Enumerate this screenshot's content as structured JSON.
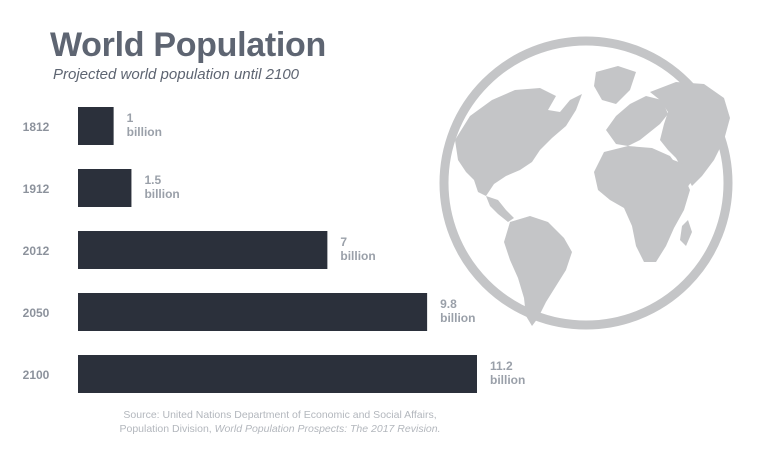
{
  "title": "World Population",
  "subtitle": "Projected world population until 2100",
  "chart_data": {
    "type": "bar",
    "orientation": "horizontal",
    "categories": [
      "1812",
      "1912",
      "2012",
      "2050",
      "2100"
    ],
    "values": [
      1,
      1.5,
      7,
      9.8,
      11.2
    ],
    "value_labels": [
      [
        "1",
        "billion"
      ],
      [
        "1.5",
        "billion"
      ],
      [
        "7",
        "billion"
      ],
      [
        "9.8",
        "billion"
      ],
      [
        "11.2",
        "billion"
      ]
    ],
    "unit": "billion",
    "xlim": [
      0,
      11.2
    ],
    "grid": false,
    "legend": "none",
    "colors": {
      "bar": "#2b303b",
      "category_label": "#8c929c",
      "value_label": "#9aa0a9"
    }
  },
  "decoration": {
    "globe_icon": "globe-icon",
    "color": "#c4c5c7"
  },
  "source": {
    "line1": "Source: United Nations Department of Economic and Social Affairs,",
    "line2_prefix": "Population Division, ",
    "line2_publication": "World Population Prospects: The 2017 Revision."
  }
}
